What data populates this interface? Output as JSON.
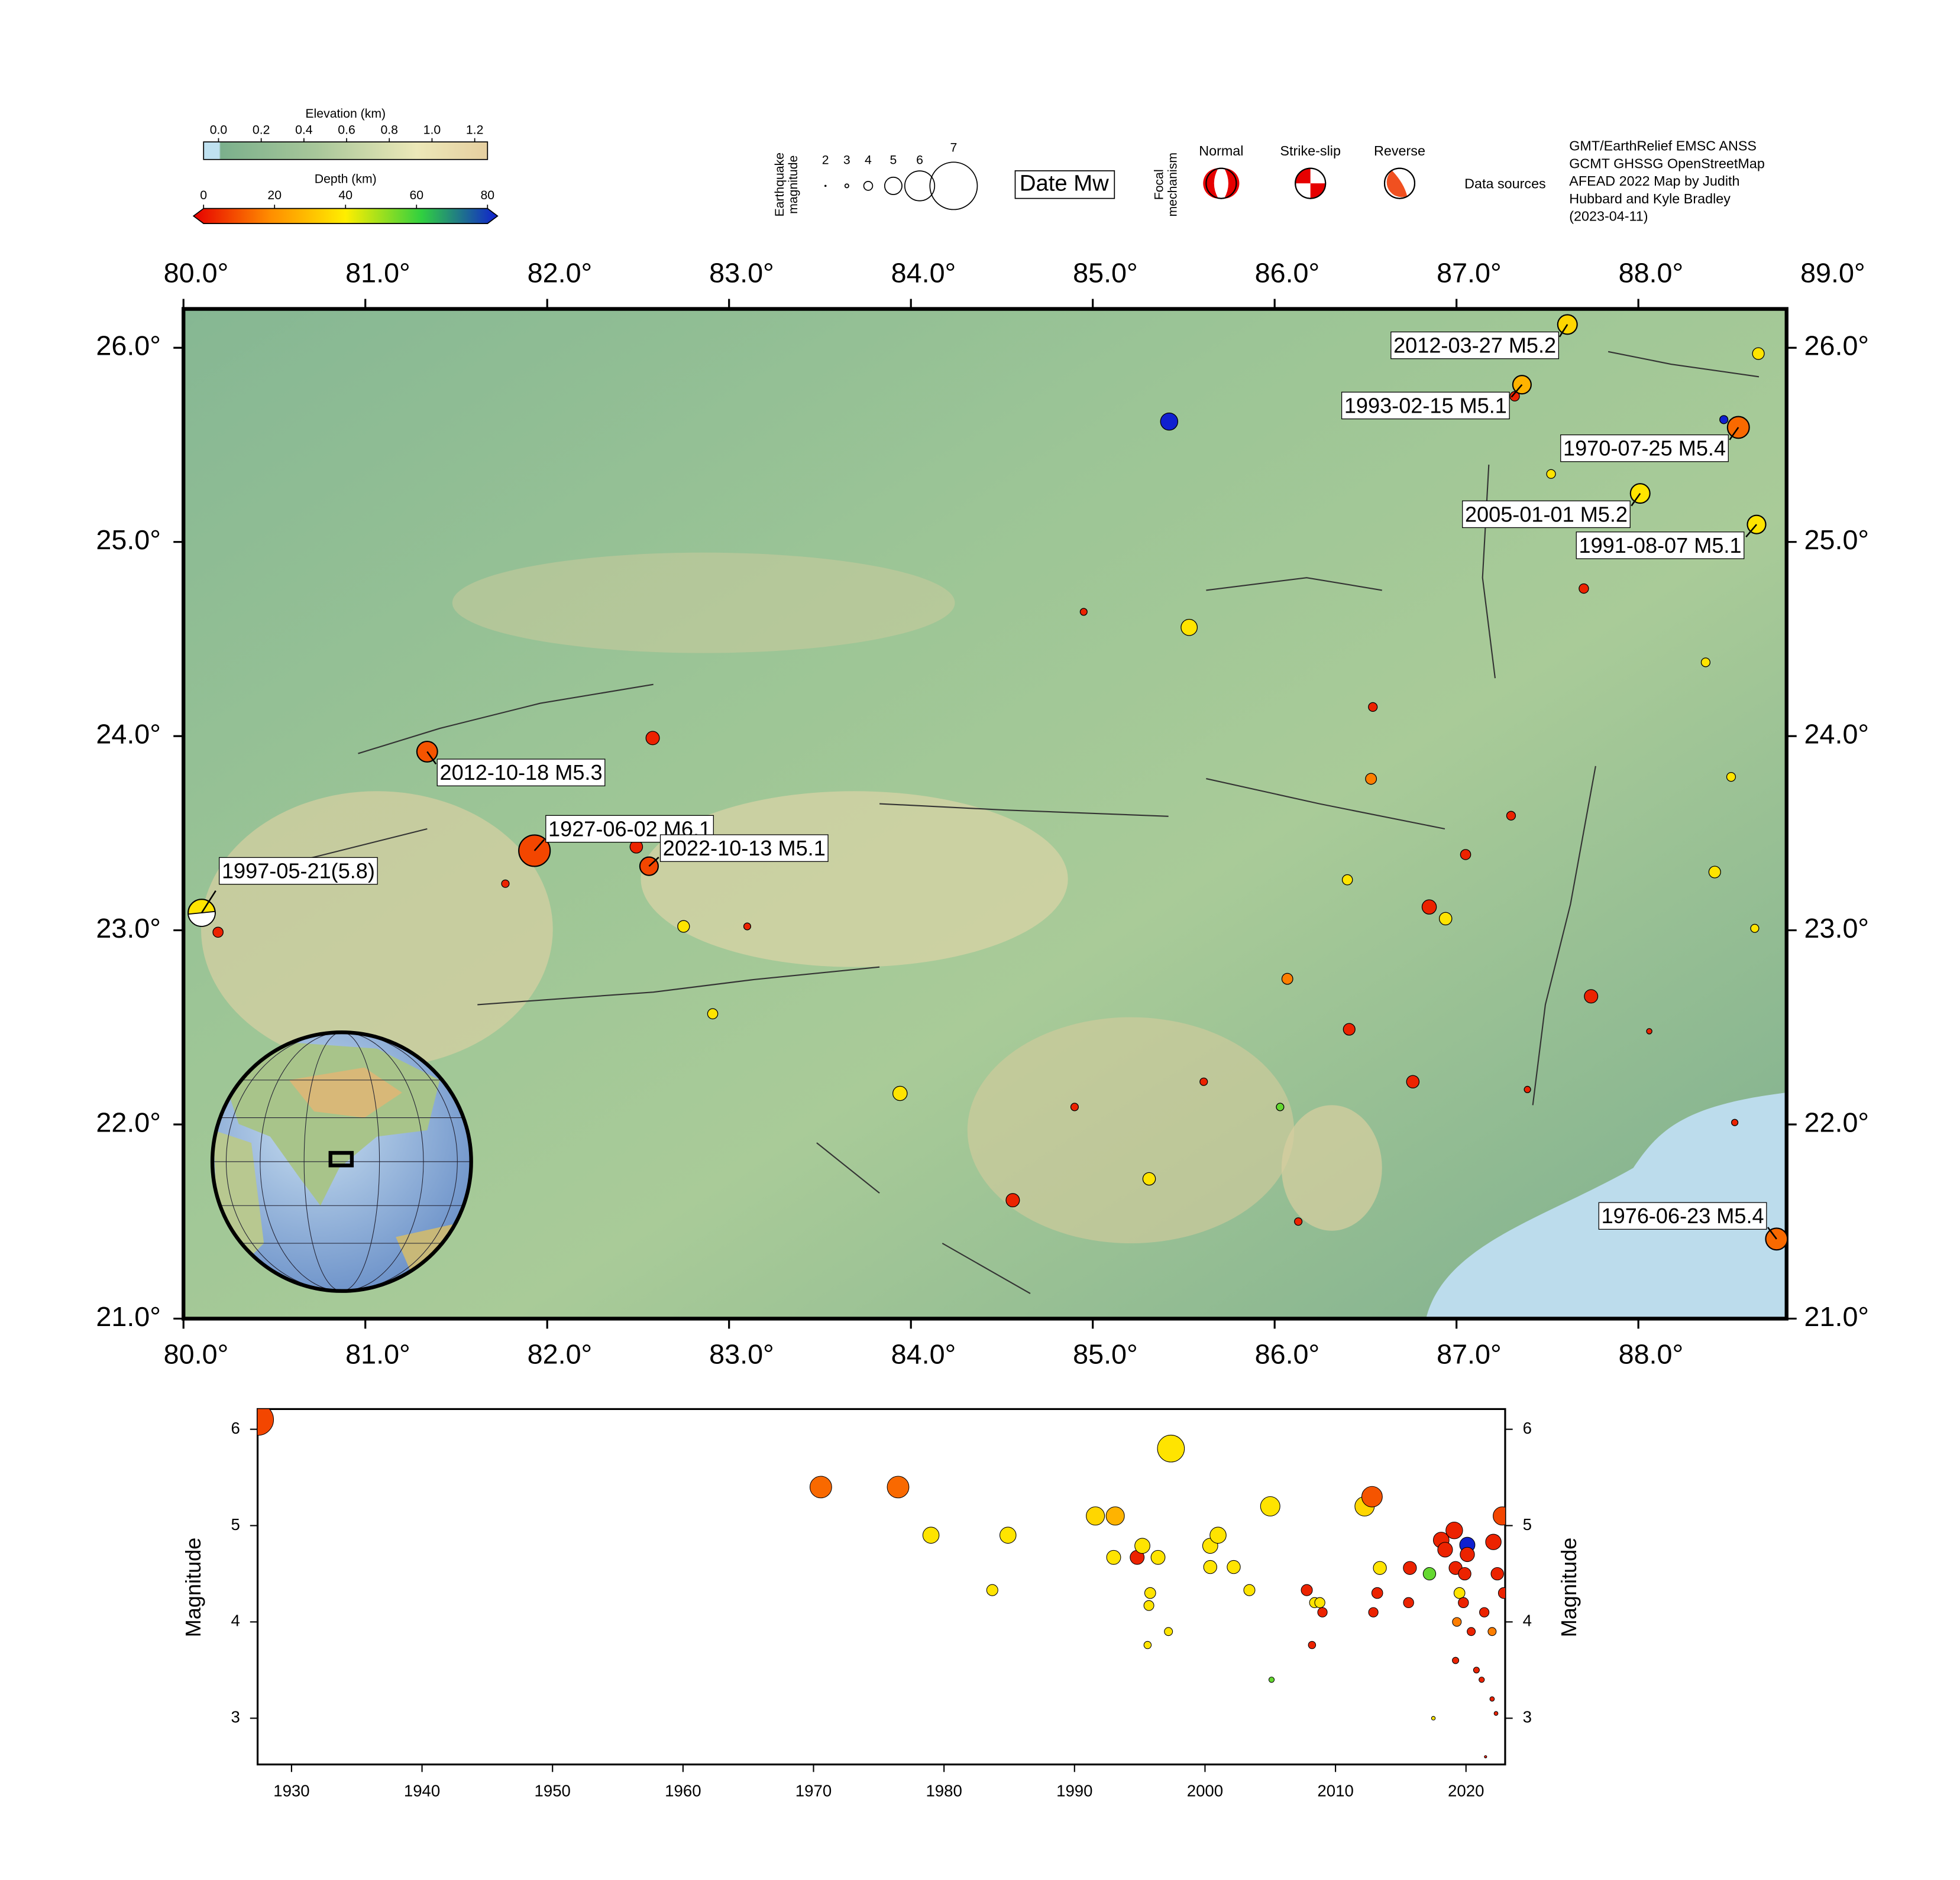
{
  "legend": {
    "elevation": {
      "title": "Elevation (km)",
      "lim": [
        -0.07,
        1.26
      ],
      "ticks": [
        {
          "value": 0,
          "label": "0.0"
        },
        {
          "value": 0.2,
          "label": "0.2"
        },
        {
          "value": 0.4,
          "label": "0.4"
        },
        {
          "value": 0.6,
          "label": "0.6"
        },
        {
          "value": 0.8,
          "label": "0.8"
        },
        {
          "value": 1,
          "label": "1.0"
        },
        {
          "value": 1.2,
          "label": "1.2"
        }
      ]
    },
    "depth": {
      "title": "Depth (km)",
      "lim": [
        0,
        80
      ],
      "ticks": [
        0,
        20,
        40,
        60,
        80
      ],
      "colors": [
        "#e60000",
        "#ff8c00",
        "#ffee00",
        "#30d040",
        "#1020d0"
      ]
    },
    "magnitude": {
      "title": [
        "Earthquake",
        "magnitude"
      ],
      "sizes": [
        2,
        3,
        4,
        5,
        6,
        7
      ]
    },
    "label_key": "Date Mw",
    "focal": {
      "title": [
        "Focal",
        "mechanism"
      ],
      "types": [
        "Normal",
        "Strike-slip",
        "Reverse"
      ]
    },
    "sources": {
      "title": "Data sources",
      "lines": [
        "GMT/EarthRelief EMSC ANSS",
        "GCMT GHSSG OpenStreetMap",
        "AFEAD 2022 Map by Judith",
        "Hubbard and Kyle Bradley",
        "(2023-04-11)"
      ]
    }
  },
  "chart_data": [
    {
      "type": "map",
      "xlim": [
        80,
        88.815
      ],
      "ylim": [
        21,
        26.2
      ],
      "xticks": [
        {
          "value": 80,
          "label": "80.0°"
        },
        {
          "value": 81,
          "label": "81.0°"
        },
        {
          "value": 82,
          "label": "82.0°"
        },
        {
          "value": 83,
          "label": "83.0°"
        },
        {
          "value": 84,
          "label": "84.0°"
        },
        {
          "value": 85,
          "label": "85.0°"
        },
        {
          "value": 86,
          "label": "86.0°"
        },
        {
          "value": 87,
          "label": "87.0°"
        },
        {
          "value": 88,
          "label": "88.0°"
        }
      ],
      "xticks_top": [
        {
          "value": 80,
          "label": "80.0°"
        },
        {
          "value": 81,
          "label": "81.0°"
        },
        {
          "value": 82,
          "label": "82.0°"
        },
        {
          "value": 83,
          "label": "83.0°"
        },
        {
          "value": 84,
          "label": "84.0°"
        },
        {
          "value": 85,
          "label": "85.0°"
        },
        {
          "value": 86,
          "label": "86.0°"
        },
        {
          "value": 87,
          "label": "87.0°"
        },
        {
          "value": 88,
          "label": "88.0°"
        },
        {
          "value": 89,
          "label": "89.0°"
        }
      ],
      "yticks": [
        {
          "value": 21,
          "label": "21.0°"
        },
        {
          "value": 22,
          "label": "22.0°"
        },
        {
          "value": 23,
          "label": "23.0°"
        },
        {
          "value": 24,
          "label": "24.0°"
        },
        {
          "value": 25,
          "label": "25.0°"
        },
        {
          "value": 26,
          "label": "26.0°"
        }
      ],
      "events": {
        "lon": [
          85.42,
          85.53,
          83.94,
          84.56,
          85.31,
          86.85,
          86.94,
          87.74,
          86.76,
          86.41,
          86.07,
          86.53,
          87.05,
          87.3,
          86.54,
          86.4,
          87.7,
          88.37,
          88.42,
          88.64,
          88.51,
          88.66,
          88.47,
          87.52,
          87.32,
          82.58,
          82.49,
          82.75,
          82.91,
          80.19,
          81.77,
          83.1,
          84.95,
          84.9,
          85.61,
          86.03,
          86.13,
          87.39,
          88.53,
          88.06
        ],
        "lat": [
          25.62,
          24.56,
          22.16,
          21.61,
          21.72,
          23.12,
          23.06,
          22.66,
          22.22,
          22.49,
          22.75,
          23.78,
          23.39,
          23.59,
          24.15,
          23.26,
          24.76,
          24.38,
          23.3,
          23.01,
          23.79,
          25.97,
          25.63,
          25.35,
          25.75,
          23.99,
          23.43,
          23.02,
          22.57,
          22.99,
          23.24,
          23.02,
          24.64,
          22.09,
          22.22,
          22.09,
          21.5,
          22.18,
          22.01,
          22.48
        ],
        "mag": [
          5.0,
          4.9,
          4.7,
          4.6,
          4.5,
          4.7,
          4.5,
          4.6,
          4.5,
          4.4,
          4.3,
          4.3,
          4.2,
          4.0,
          4.0,
          4.2,
          4.1,
          4.0,
          4.4,
          3.9,
          4.0,
          4.4,
          3.9,
          4.0,
          4.1,
          4.6,
          4.5,
          4.4,
          4.2,
          4.2,
          3.8,
          3.7,
          3.7,
          3.8,
          3.8,
          3.8,
          3.8,
          3.6,
          3.6,
          3.4
        ],
        "depth": [
          80,
          38,
          38,
          5,
          38,
          5,
          38,
          5,
          5,
          5,
          18,
          18,
          5,
          5,
          5,
          38,
          5,
          38,
          38,
          38,
          38,
          38,
          80,
          38,
          5,
          5,
          5,
          38,
          38,
          5,
          5,
          5,
          5,
          5,
          5,
          55,
          5,
          5,
          5,
          5
        ]
      },
      "labeled": [
        {
          "label": "2012-10-18 M5.3",
          "lon": 81.34,
          "lat": 23.92,
          "mag": 5.3,
          "depth": 12
        },
        {
          "label": "1927-06-02 M6.1",
          "lon": 81.93,
          "lat": 23.41,
          "mag": 6.1,
          "depth": 10
        },
        {
          "label": "2022-10-13 M5.1",
          "lon": 82.56,
          "lat": 23.33,
          "mag": 5.1,
          "depth": 10
        },
        {
          "label": "1997-05-21(5.8)",
          "lon": 80.1,
          "lat": 23.09,
          "mag": 5.8,
          "depth": 38
        },
        {
          "label": "2012-03-27 M5.2",
          "lon": 87.61,
          "lat": 26.12,
          "mag": 5.2,
          "depth": 35
        },
        {
          "label": "1993-02-15 M5.1",
          "lon": 87.36,
          "lat": 25.81,
          "mag": 5.1,
          "depth": 28
        },
        {
          "label": "1970-07-25 M5.4",
          "lon": 88.55,
          "lat": 25.59,
          "mag": 5.4,
          "depth": 15
        },
        {
          "label": "2005-01-01 M5.2",
          "lon": 88.01,
          "lat": 25.25,
          "mag": 5.2,
          "depth": 38
        },
        {
          "label": "1991-08-07 M5.1",
          "lon": 88.65,
          "lat": 25.09,
          "mag": 5.1,
          "depth": 38
        },
        {
          "label": "1976-06-23 M5.4",
          "lon": 88.76,
          "lat": 21.41,
          "mag": 5.4,
          "depth": 15
        }
      ]
    },
    {
      "type": "scatter",
      "ylabel": "Magnitude",
      "xlim": [
        1927.4,
        2023
      ],
      "ylim": [
        2.52,
        6.21
      ],
      "xticks": [
        1930,
        1940,
        1950,
        1960,
        1970,
        1980,
        1990,
        2000,
        2010,
        2020
      ],
      "yticks": [
        3,
        4,
        5,
        6
      ],
      "x": [
        1927.42,
        1970.56,
        1976.48,
        1979.0,
        1984.9,
        1983.7,
        1991.6,
        1993.12,
        1993.0,
        1994.8,
        1995.2,
        1995.7,
        1995.8,
        1995.6,
        1996.4,
        1997.39,
        1997.2,
        2000.4,
        2001.0,
        2000.4,
        2002.2,
        2003.4,
        2005.0,
        2005.1,
        2007.8,
        2008.2,
        2008.4,
        2008.8,
        2009.0,
        2012.23,
        2012.8,
        2012.9,
        2013.2,
        2013.4,
        2015.7,
        2015.6,
        2017.2,
        2017.5,
        2018.1,
        2018.4,
        2019.1,
        2019.2,
        2020.1,
        2020.1,
        2019.5,
        2019.9,
        2019.8,
        2019.3,
        2019.2,
        2020.4,
        2020.8,
        2021.4,
        2021.2,
        2022.1,
        2022.78,
        2022.4,
        2022.0,
        2022.0,
        2022.3,
        2021.5,
        2022.9
      ],
      "y": [
        6.1,
        5.4,
        5.4,
        4.9,
        4.9,
        4.33,
        5.1,
        5.1,
        4.67,
        4.67,
        4.79,
        4.17,
        4.3,
        3.76,
        4.67,
        5.8,
        3.9,
        4.79,
        4.9,
        4.57,
        4.57,
        4.33,
        5.2,
        3.4,
        4.33,
        3.76,
        4.2,
        4.2,
        4.1,
        5.2,
        5.3,
        4.1,
        4.3,
        4.56,
        4.56,
        4.2,
        4.5,
        3.0,
        4.85,
        4.75,
        4.95,
        4.56,
        4.8,
        4.7,
        4.3,
        4.5,
        4.2,
        4.0,
        3.6,
        3.9,
        3.5,
        4.1,
        3.4,
        4.83,
        5.1,
        4.5,
        3.9,
        3.2,
        3.05,
        2.6,
        4.3
      ],
      "depth": [
        10,
        15,
        15,
        38,
        38,
        38,
        35,
        28,
        38,
        5,
        38,
        38,
        38,
        38,
        38,
        38,
        38,
        38,
        38,
        38,
        38,
        38,
        38,
        55,
        5,
        5,
        38,
        38,
        5,
        35,
        12,
        5,
        5,
        38,
        5,
        5,
        55,
        38,
        5,
        5,
        5,
        5,
        80,
        5,
        38,
        5,
        5,
        18,
        5,
        5,
        5,
        5,
        5,
        5,
        10,
        5,
        18,
        5,
        5,
        5,
        5
      ]
    }
  ]
}
